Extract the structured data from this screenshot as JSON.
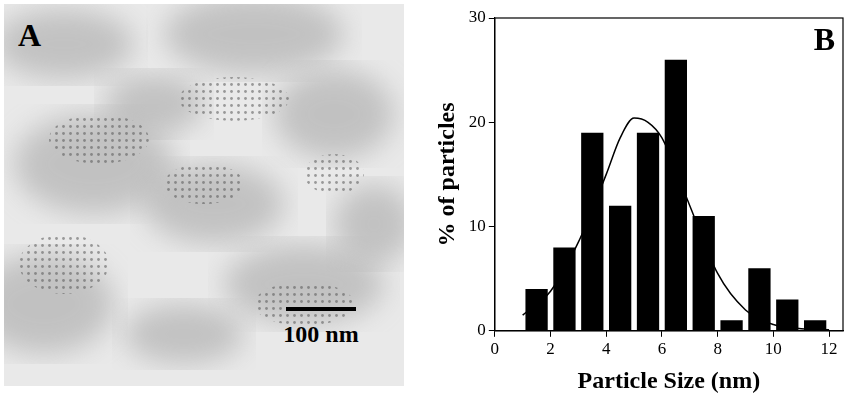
{
  "panel_a": {
    "label": "A",
    "scale_bar": "100 nm"
  },
  "chart_data": {
    "type": "histogram",
    "label": "B",
    "x_label": "Particle Size (nm)",
    "y_label": "% of particles",
    "bins": [
      1,
      2,
      3,
      4,
      5,
      6,
      7,
      8,
      9,
      10,
      11,
      12
    ],
    "values": [
      4,
      8,
      19,
      12,
      19,
      26,
      11,
      1,
      6,
      3,
      1
    ],
    "color": "#000000",
    "fit": {
      "type": "line",
      "color": "#000000",
      "x": [
        1,
        2,
        3,
        4,
        4.5,
        5,
        5.5,
        6,
        7,
        8,
        9,
        10,
        11,
        12
      ],
      "values": [
        1.5,
        3.8,
        8.5,
        15,
        18.5,
        20.4,
        20,
        18.5,
        12,
        5.5,
        2,
        0.6,
        0.2,
        0.1
      ]
    },
    "xlim": [
      0,
      12.5
    ],
    "xticks": [
      0,
      2,
      4,
      6,
      8,
      10,
      12
    ],
    "ylim": [
      0,
      30
    ],
    "yticks": [
      0,
      10,
      20,
      30
    ],
    "grid": false
  }
}
